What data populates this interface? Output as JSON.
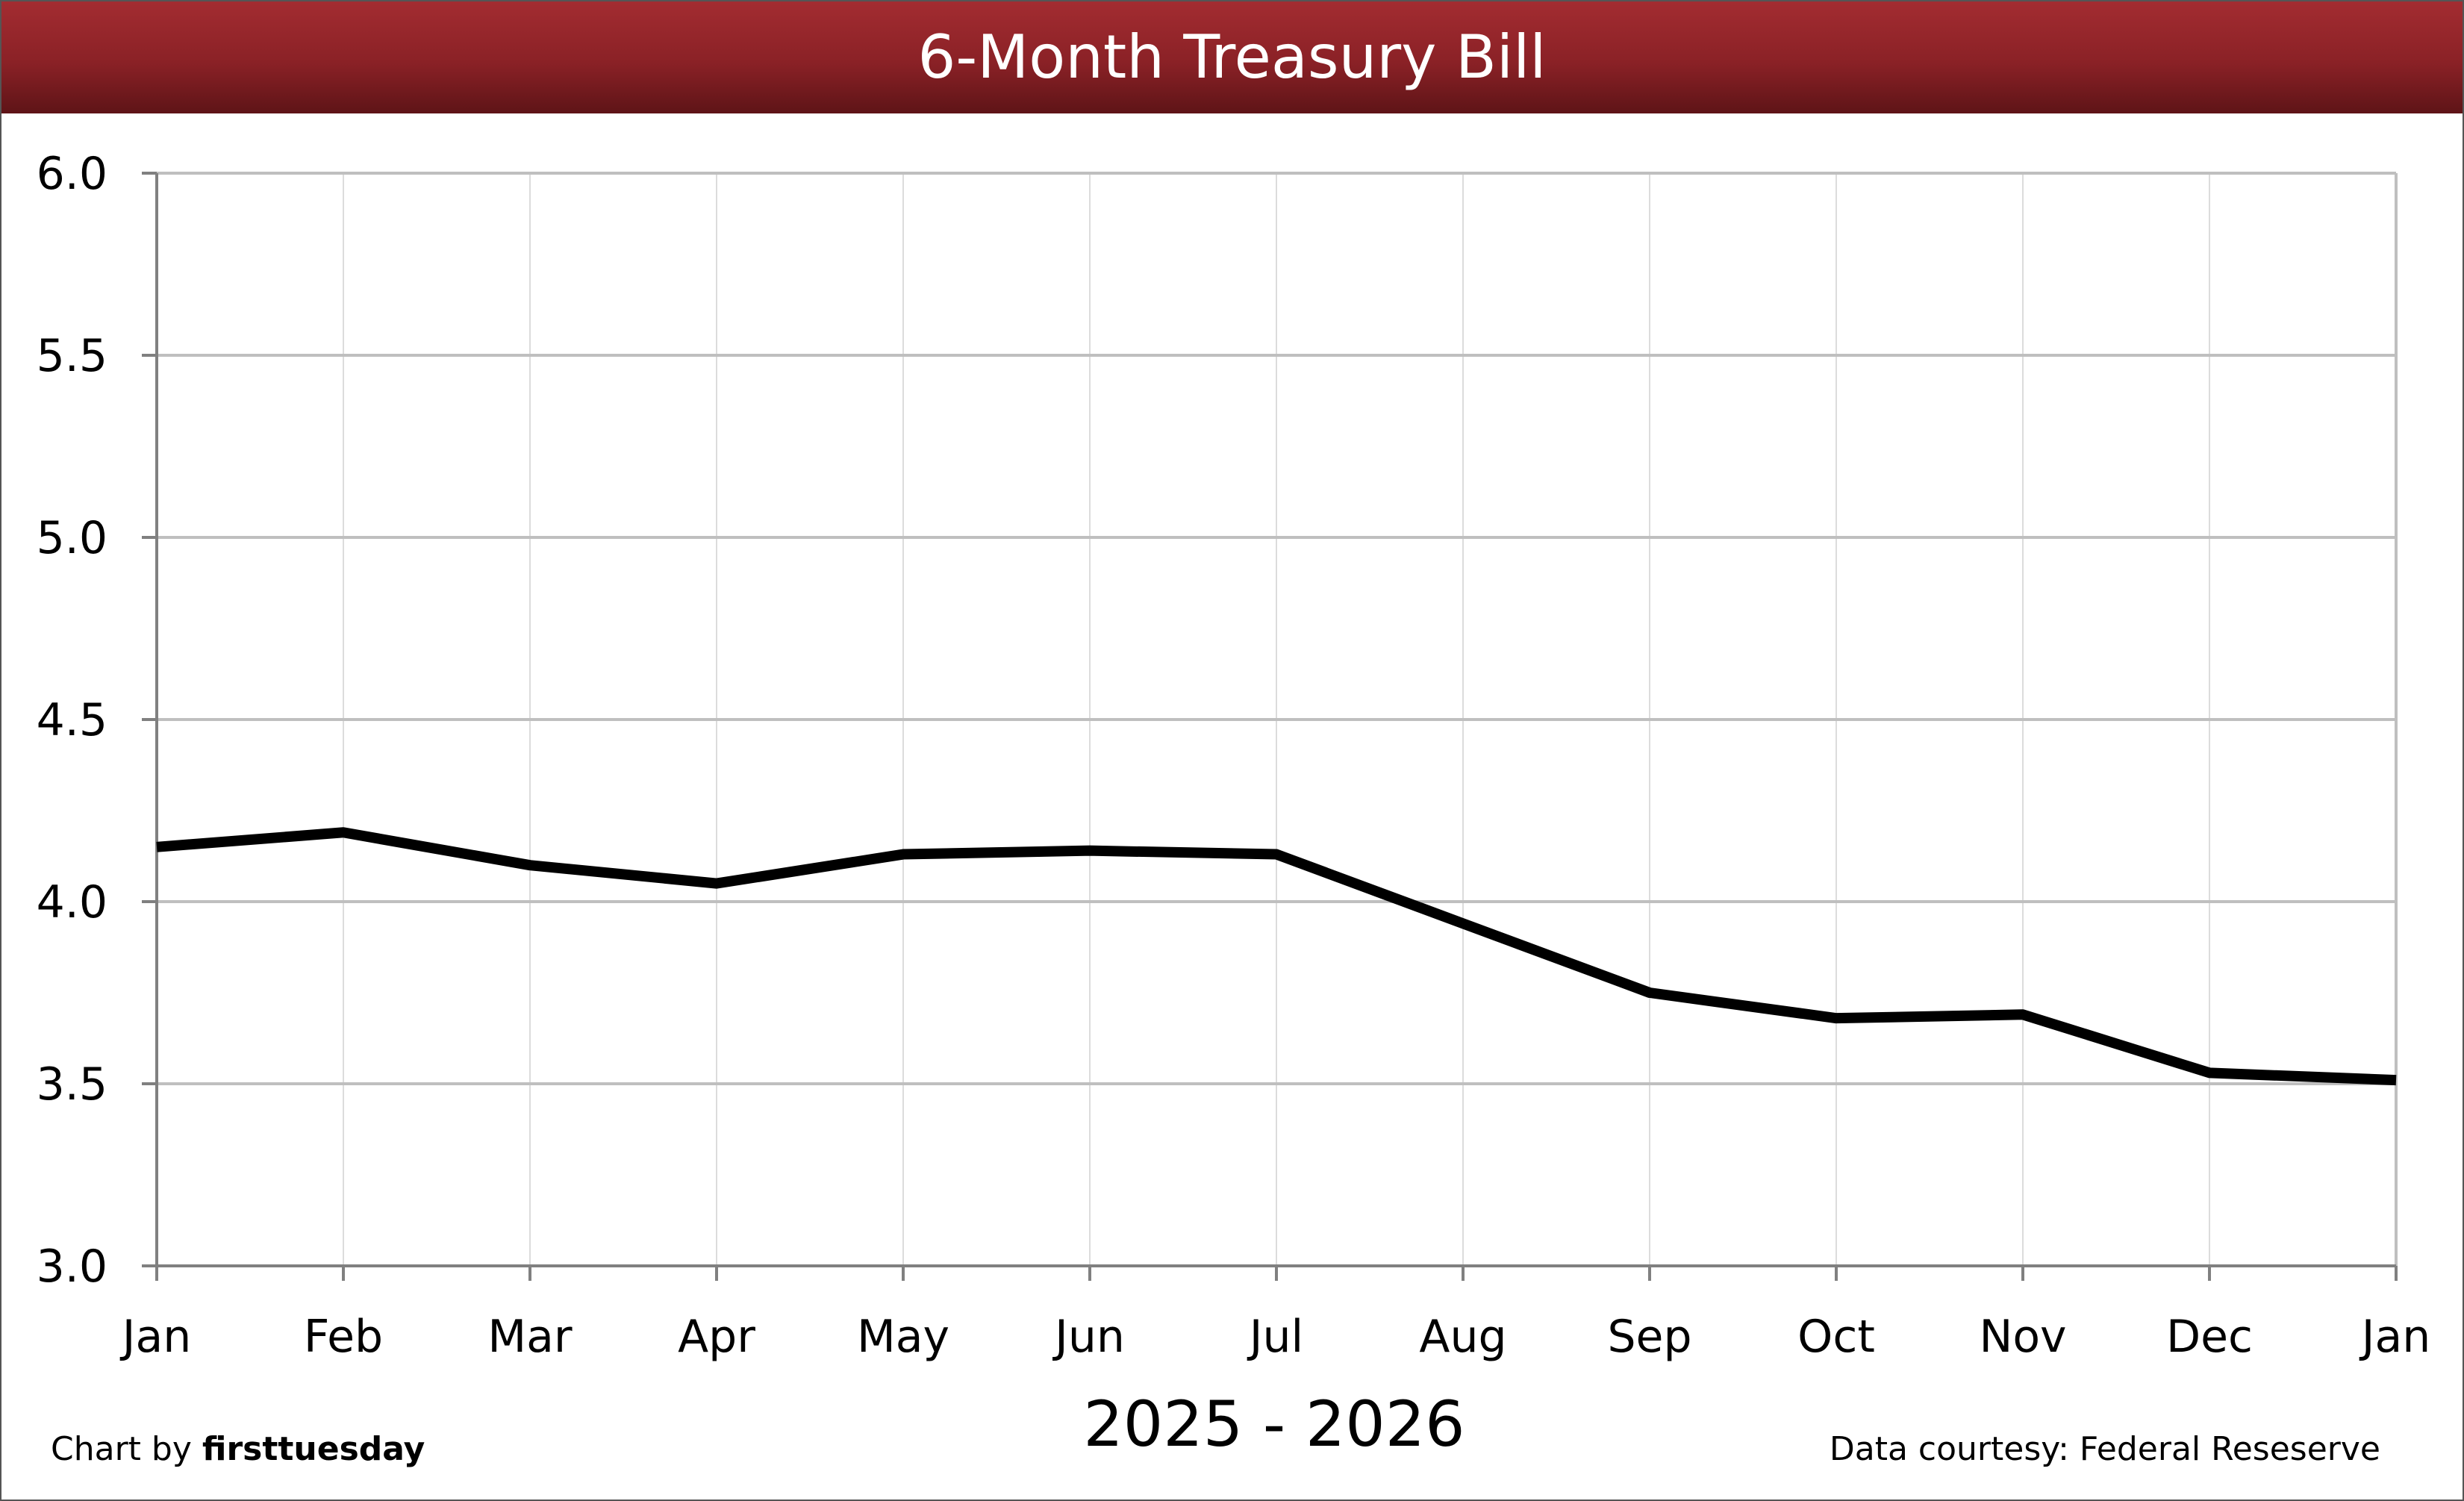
{
  "chart_data": {
    "type": "line",
    "title": "6-Month Treasury Bill",
    "xlabel": "2025 - 2026",
    "ylabel": "",
    "categories": [
      "Jan",
      "Feb",
      "Mar",
      "Apr",
      "May",
      "Jun",
      "Jul",
      "Aug",
      "Sep",
      "Oct",
      "Nov",
      "Dec",
      "Jan"
    ],
    "series": [
      {
        "values": [
          4.15,
          4.19,
          4.1,
          4.05,
          4.13,
          4.14,
          4.13,
          3.94,
          3.75,
          3.68,
          3.69,
          3.53,
          3.51
        ],
        "color": "#000000"
      }
    ],
    "ylim": [
      3.0,
      6.0
    ],
    "yticks": [
      "3.0",
      "3.5",
      "4.0",
      "4.5",
      "5.0",
      "5.5",
      "6.0"
    ],
    "grid": true,
    "legend": "none"
  },
  "credits": {
    "left_prefix": "Chart by ",
    "left_brand": "firsttuesday",
    "right": "Data courtesy: Federal Reseserve"
  },
  "colors": {
    "title_bar": "#8a2126",
    "line": "#000000",
    "grid": "#bfbfbf"
  }
}
